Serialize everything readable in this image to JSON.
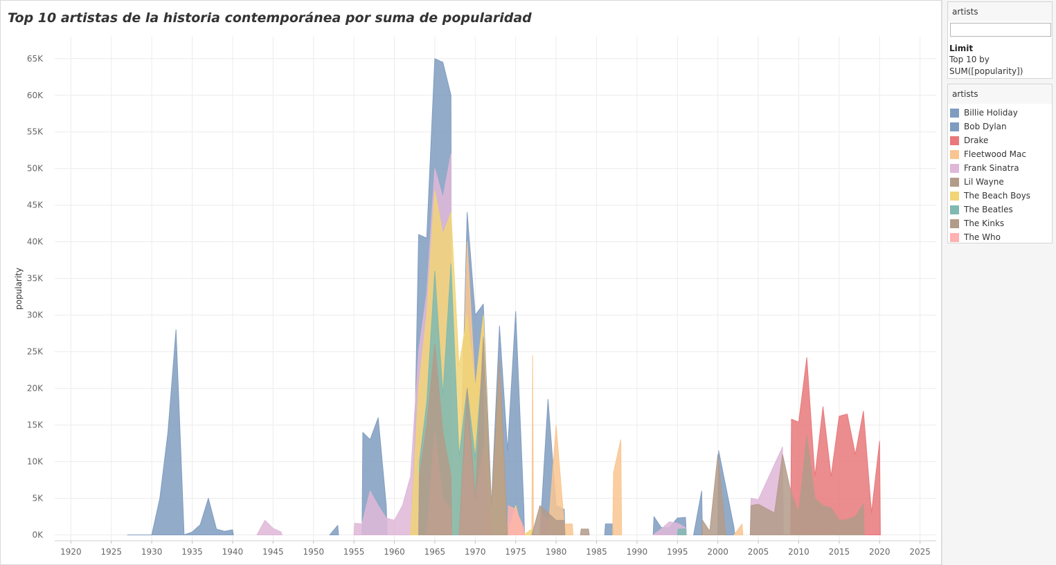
{
  "title": "Top 10 artistas de la historia contemporánea por suma de popularidad",
  "filter": {
    "header": "artists",
    "value": "",
    "limit_title": "Limit",
    "limit_line1": "Top 10 by",
    "limit_line2": "SUM([popularity])"
  },
  "legend": {
    "header": "artists",
    "items": [
      {
        "label": "Billie Holiday",
        "color": "#7f9cc0"
      },
      {
        "label": "Bob Dylan",
        "color": "#7f9cc0"
      },
      {
        "label": "Drake",
        "color": "#e8787a"
      },
      {
        "label": "Fleetwood Mac",
        "color": "#f9c690"
      },
      {
        "label": "Frank Sinatra",
        "color": "#dfb7d8"
      },
      {
        "label": "Lil Wayne",
        "color": "#b39b8a"
      },
      {
        "label": "The Beach Boys",
        "color": "#f1d577"
      },
      {
        "label": "The Beatles",
        "color": "#7fb9b1"
      },
      {
        "label": "The Kinks",
        "color": "#b39b8a"
      },
      {
        "label": "The Who",
        "color": "#ffb0b0"
      }
    ]
  },
  "chart_data": {
    "type": "area",
    "xlabel": "",
    "ylabel": "popularity",
    "xlim": [
      1918,
      2027
    ],
    "ylim": [
      -800,
      68000
    ],
    "x_ticks": [
      1920,
      1925,
      1930,
      1935,
      1940,
      1945,
      1950,
      1955,
      1960,
      1965,
      1970,
      1975,
      1980,
      1985,
      1990,
      1995,
      2000,
      2005,
      2010,
      2015,
      2020,
      2025
    ],
    "y_ticks": [
      {
        "value": 0,
        "label": "0K"
      },
      {
        "value": 5000,
        "label": "5K"
      },
      {
        "value": 10000,
        "label": "10K"
      },
      {
        "value": 15000,
        "label": "15K"
      },
      {
        "value": 20000,
        "label": "20K"
      },
      {
        "value": 25000,
        "label": "25K"
      },
      {
        "value": 30000,
        "label": "30K"
      },
      {
        "value": 35000,
        "label": "35K"
      },
      {
        "value": 40000,
        "label": "40K"
      },
      {
        "value": 45000,
        "label": "45K"
      },
      {
        "value": 50000,
        "label": "50K"
      },
      {
        "value": 55000,
        "label": "55K"
      },
      {
        "value": 60000,
        "label": "60K"
      },
      {
        "value": 65000,
        "label": "65K"
      }
    ],
    "grid": true,
    "legend_position": "right",
    "series": [
      {
        "name": "Billie Holiday",
        "color": "#7f9cc0",
        "segments": [
          [
            [
              1927,
              0
            ],
            [
              1929,
              0
            ],
            [
              1930,
              0
            ],
            [
              1931,
              5000
            ],
            [
              1932,
              14000
            ],
            [
              1933,
              28000
            ],
            [
              1934,
              0
            ],
            [
              1935,
              400
            ],
            [
              1936,
              1400
            ],
            [
              1937,
              5000
            ],
            [
              1938,
              800
            ],
            [
              1939,
              500
            ],
            [
              1940,
              700
            ],
            [
              1940.1,
              0
            ]
          ],
          [
            [
              1952,
              0
            ],
            [
              1953,
              1300
            ],
            [
              1953.1,
              0
            ]
          ]
        ]
      },
      {
        "name": "Bob Dylan",
        "color": "#7f9cc0",
        "segments": [
          [
            [
              1956,
              0
            ],
            [
              1956.1,
              14000
            ],
            [
              1957,
              13000
            ],
            [
              1958,
              16000
            ],
            [
              1959,
              4000
            ],
            [
              1959.1,
              0
            ]
          ],
          [
            [
              1962,
              0
            ],
            [
              1962.5,
              12000
            ],
            [
              1963,
              41000
            ],
            [
              1964,
              40500
            ],
            [
              1965,
              65000
            ],
            [
              1966,
              64500
            ],
            [
              1967,
              60000
            ],
            [
              1967.1,
              0
            ]
          ],
          [
            [
              1968,
              0
            ],
            [
              1969,
              44000
            ],
            [
              1970,
              30000
            ],
            [
              1971,
              31500
            ],
            [
              1972,
              4000
            ],
            [
              1973,
              28500
            ],
            [
              1974,
              11500
            ],
            [
              1975,
              30500
            ],
            [
              1976,
              4000
            ],
            [
              1976.1,
              0
            ]
          ],
          [
            [
              1978,
              0
            ],
            [
              1979,
              18500
            ],
            [
              1980,
              4000
            ],
            [
              1981,
              3500
            ],
            [
              1981.1,
              0
            ]
          ],
          [
            [
              1986,
              0
            ],
            [
              1986.1,
              1500
            ],
            [
              1987,
              1500
            ],
            [
              1987.1,
              0
            ]
          ],
          [
            [
              1992,
              0
            ],
            [
              1992.1,
              2500
            ],
            [
              1993,
              1000
            ],
            [
              1994,
              1000
            ],
            [
              1995,
              2300
            ],
            [
              1996,
              2400
            ],
            [
              1996.1,
              0
            ]
          ],
          [
            [
              1997,
              0
            ],
            [
              1998,
              6000
            ],
            [
              1998.1,
              0
            ]
          ],
          [
            [
              2000,
              0
            ],
            [
              2000.1,
              11500
            ],
            [
              2002,
              1000
            ],
            [
              2002.1,
              0
            ]
          ]
        ]
      },
      {
        "name": "Frank Sinatra",
        "color": "#dfb7d8",
        "segments": [
          [
            [
              1943,
              0
            ],
            [
              1944,
              2000
            ],
            [
              1945,
              900
            ],
            [
              1946,
              400
            ],
            [
              1946.1,
              0
            ]
          ],
          [
            [
              1955,
              0
            ],
            [
              1955.1,
              1600
            ],
            [
              1956,
              1500
            ],
            [
              1957,
              6000
            ],
            [
              1958,
              4000
            ],
            [
              1959,
              2300
            ],
            [
              1960,
              2000
            ],
            [
              1961,
              4000
            ],
            [
              1962,
              8000
            ],
            [
              1963,
              25000
            ],
            [
              1964,
              33000
            ],
            [
              1965,
              50000
            ],
            [
              1966,
              46000
            ],
            [
              1967,
              52000
            ],
            [
              1967.1,
              0
            ]
          ],
          [
            [
              1992,
              0
            ],
            [
              1993,
              800
            ],
            [
              1994,
              1800
            ],
            [
              1995,
              1600
            ],
            [
              1996,
              1000
            ],
            [
              1996.1,
              0
            ]
          ],
          [
            [
              2004,
              0
            ],
            [
              2004.1,
              5000
            ],
            [
              2005,
              4800
            ],
            [
              2008,
              12000
            ],
            [
              2008.1,
              0
            ]
          ]
        ]
      },
      {
        "name": "Fleetwood Mac",
        "color": "#f9c690",
        "segments": [
          [
            [
              1968,
              0
            ],
            [
              1969,
              40000
            ],
            [
              1970,
              20000
            ],
            [
              1971,
              29000
            ],
            [
              1971.1,
              0
            ]
          ],
          [
            [
              1977,
              0
            ],
            [
              1977.1,
              24500
            ],
            [
              1977.2,
              0
            ]
          ],
          [
            [
              1979,
              0
            ],
            [
              1980,
              15000
            ],
            [
              1981,
              1500
            ],
            [
              1982,
              1500
            ],
            [
              1982.1,
              0
            ]
          ],
          [
            [
              1987,
              0
            ],
            [
              1987.1,
              8500
            ],
            [
              1988,
              13000
            ],
            [
              1988.1,
              0
            ]
          ],
          [
            [
              2002,
              0
            ],
            [
              2003,
              1500
            ],
            [
              2003.1,
              0
            ]
          ]
        ]
      },
      {
        "name": "The Beach Boys",
        "color": "#f1d577",
        "segments": [
          [
            [
              1962,
              0
            ],
            [
              1963,
              20000
            ],
            [
              1964,
              30000
            ],
            [
              1965,
              47000
            ],
            [
              1966,
              41000
            ],
            [
              1967,
              44000
            ],
            [
              1968,
              23000
            ],
            [
              1969,
              30000
            ],
            [
              1970,
              20000
            ],
            [
              1971,
              30000
            ],
            [
              1972,
              2000
            ],
            [
              1973,
              22000
            ],
            [
              1974,
              0
            ],
            [
              1975,
              4000
            ],
            [
              1976,
              0
            ],
            [
              1977,
              800
            ],
            [
              1977.1,
              0
            ]
          ],
          [
            [
              2012,
              0
            ],
            [
              2012.1,
              1500
            ],
            [
              2013,
              0
            ]
          ]
        ]
      },
      {
        "name": "The Beatles",
        "color": "#7fb9b1",
        "segments": [
          [
            [
              1963,
              0
            ],
            [
              1963.1,
              10000
            ],
            [
              1964,
              18000
            ],
            [
              1965,
              36000
            ],
            [
              1966,
              19000
            ],
            [
              1967,
              37000
            ],
            [
              1968,
              10700
            ],
            [
              1969,
              20000
            ],
            [
              1970,
              10500
            ],
            [
              1971,
              25000
            ],
            [
              1971.1,
              0
            ]
          ],
          [
            [
              1995,
              0
            ],
            [
              1995.1,
              800
            ],
            [
              1996,
              800
            ],
            [
              1996.1,
              0
            ]
          ]
        ]
      },
      {
        "name": "The Who",
        "color": "#ffb0b0",
        "segments": [
          [
            [
              1964,
              0
            ],
            [
              1965,
              14000
            ],
            [
              1966,
              5000
            ],
            [
              1967,
              3500
            ],
            [
              1967.1,
              0
            ]
          ],
          [
            [
              1968,
              0
            ],
            [
              1969,
              16000
            ],
            [
              1970,
              4500
            ],
            [
              1971,
              12000
            ],
            [
              1972,
              0
            ]
          ],
          [
            [
              1974,
              0
            ],
            [
              1974.1,
              4000
            ],
            [
              1975,
              3500
            ],
            [
              1976,
              1000
            ],
            [
              1976.1,
              0
            ]
          ],
          [
            [
              1978,
              0
            ],
            [
              1978.1,
              3000
            ],
            [
              1979,
              2000
            ],
            [
              1979.1,
              0
            ]
          ]
        ]
      },
      {
        "name": "The Kinks",
        "color": "#b39b8a",
        "segments": [
          [
            [
              1963,
              0
            ],
            [
              1963.1,
              8000
            ],
            [
              1964,
              15000
            ],
            [
              1965,
              26000
            ],
            [
              1966,
              14000
            ],
            [
              1967,
              8000
            ],
            [
              1967.1,
              0
            ]
          ],
          [
            [
              1968,
              0
            ],
            [
              1969,
              20000
            ],
            [
              1970,
              5000
            ],
            [
              1971,
              27000
            ],
            [
              1972,
              4000
            ],
            [
              1973,
              24000
            ],
            [
              1974,
              0
            ]
          ],
          [
            [
              1977,
              0
            ],
            [
              1978,
              4000
            ],
            [
              1979,
              3000
            ],
            [
              1980,
              2000
            ],
            [
              1981,
              2000
            ],
            [
              1981.1,
              0
            ]
          ],
          [
            [
              1983,
              0
            ],
            [
              1983.1,
              800
            ],
            [
              1984,
              800
            ],
            [
              1984.1,
              0
            ]
          ]
        ]
      },
      {
        "name": "Drake",
        "color": "#e8787a",
        "segments": [
          [
            [
              2009,
              0
            ],
            [
              2009.1,
              15800
            ],
            [
              2010,
              15400
            ],
            [
              2011,
              24200
            ],
            [
              2012,
              8000
            ],
            [
              2013,
              17500
            ],
            [
              2014,
              8000
            ],
            [
              2015,
              16200
            ],
            [
              2016,
              16500
            ],
            [
              2017,
              11000
            ],
            [
              2018,
              16900
            ],
            [
              2019,
              3000
            ],
            [
              2020,
              12800
            ],
            [
              2020.1,
              0
            ]
          ]
        ]
      },
      {
        "name": "Lil Wayne",
        "color": "#b39b8a",
        "segments": [
          [
            [
              1998,
              0
            ],
            [
              1998.1,
              2000
            ],
            [
              1999,
              500
            ],
            [
              2000,
              11000
            ],
            [
              2001,
              0
            ]
          ],
          [
            [
              2004,
              0
            ],
            [
              2004.1,
              4000
            ],
            [
              2005,
              4200
            ],
            [
              2007,
              3000
            ],
            [
              2008,
              11000
            ],
            [
              2009,
              6000
            ],
            [
              2010,
              3000
            ],
            [
              2011,
              13500
            ],
            [
              2012,
              5000
            ],
            [
              2013,
              4000
            ],
            [
              2014,
              3700
            ],
            [
              2015,
              2000
            ],
            [
              2016,
              2100
            ],
            [
              2017,
              2500
            ],
            [
              2018,
              4200
            ],
            [
              2018.1,
              0
            ]
          ]
        ]
      }
    ]
  }
}
